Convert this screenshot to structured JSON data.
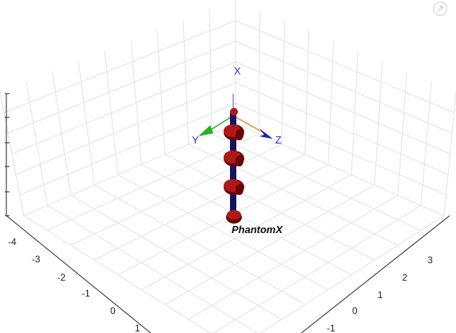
{
  "toolbar": {
    "restore_icon": "arrow-up-right-icon"
  },
  "axes3d": {
    "left_axis_ticks": [
      "-4",
      "-3",
      "-2",
      "-1",
      "0",
      "1"
    ],
    "right_axis_ticks": [
      "3",
      "2",
      "1",
      "0",
      "-1"
    ]
  },
  "frame": {
    "labels": {
      "x": "X",
      "y": "Y",
      "z": "Z"
    },
    "colors": {
      "x": "#3030d8",
      "y": "#22b022",
      "z": "#1818c8",
      "x_line": "#8888ee",
      "y_line": "#33aa33",
      "z_line": "#ee8833"
    }
  },
  "robot": {
    "name_prefix": "Phantom",
    "name_suffix": "X",
    "colors": {
      "joint": "#b01818",
      "joint_dark": "#6a0606",
      "link": "#141460"
    },
    "joint_count": 5
  }
}
